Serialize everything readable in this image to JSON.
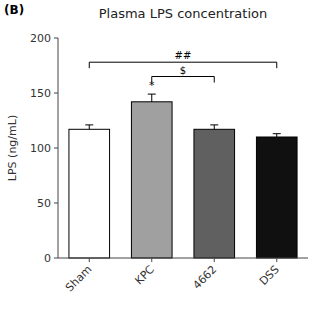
{
  "chart_data": {
    "type": "bar",
    "title": "Plasma LPS concentration",
    "panel_label": "(B)",
    "ylabel": "LPS (ng/mL)",
    "categories": [
      "Sham",
      "KPC",
      "4662",
      "DSS"
    ],
    "values": [
      117,
      142,
      117,
      110
    ],
    "errors": [
      4,
      7,
      4,
      3
    ],
    "colors": [
      "#ffffff",
      "#a0a0a0",
      "#606060",
      "#101010"
    ],
    "ylim": [
      0,
      200
    ],
    "yticks": [
      0,
      50,
      100,
      150,
      200
    ],
    "grid": false,
    "annotations": [
      {
        "from": "KPC",
        "to": "4662",
        "y": 165,
        "label": "$"
      },
      {
        "from": "Sham",
        "to": "DSS",
        "y": 178,
        "label": "##"
      },
      {
        "at": "KPC",
        "y": 154,
        "label": "*"
      }
    ]
  }
}
